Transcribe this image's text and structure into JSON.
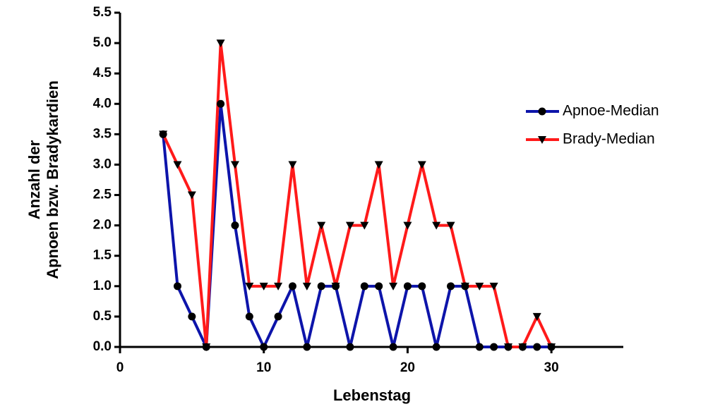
{
  "chart_data": {
    "type": "line",
    "xlabel": "Lebenstag",
    "ylabel": [
      "Anzahl der",
      "Apnoen bzw. Bradykardien"
    ],
    "x": [
      3,
      4,
      5,
      6,
      7,
      8,
      9,
      10,
      11,
      12,
      13,
      14,
      15,
      16,
      17,
      18,
      19,
      20,
      21,
      22,
      23,
      24,
      25,
      26,
      27,
      28,
      29,
      30
    ],
    "series": [
      {
        "name": "Apnoe-Median",
        "color": "#0d14aa",
        "marker": "circle",
        "values": [
          3.5,
          1,
          0.5,
          0,
          4,
          2,
          0.5,
          0,
          0.5,
          1,
          0,
          1,
          1,
          0,
          1,
          1,
          0,
          1,
          1,
          0,
          1,
          1,
          0,
          0,
          0,
          0,
          0,
          0
        ]
      },
      {
        "name": "Brady-Median",
        "color": "#ff1a1a",
        "marker": "triangle-down",
        "values": [
          3.5,
          3,
          2.5,
          0,
          5,
          3,
          1,
          1,
          1,
          3,
          1,
          2,
          1,
          2,
          2,
          3,
          1,
          2,
          3,
          2,
          2,
          1,
          1,
          1,
          0,
          0,
          0.5,
          0
        ]
      }
    ],
    "xlim": [
      0,
      35
    ],
    "xticks": [
      0,
      10,
      20,
      30
    ],
    "ylim": [
      0,
      5.5
    ],
    "yticks": [
      {
        "value": 0,
        "label": "0.0"
      },
      0.5,
      {
        "value": 1,
        "label": "1.0"
      },
      1.5,
      {
        "value": 2,
        "label": "2.0"
      },
      2.5,
      {
        "value": 3,
        "label": "3.0"
      },
      3.5,
      {
        "value": 4,
        "label": "4.0"
      },
      4.5,
      {
        "value": 5,
        "label": "5.0"
      },
      5.5
    ],
    "legend": "right"
  }
}
